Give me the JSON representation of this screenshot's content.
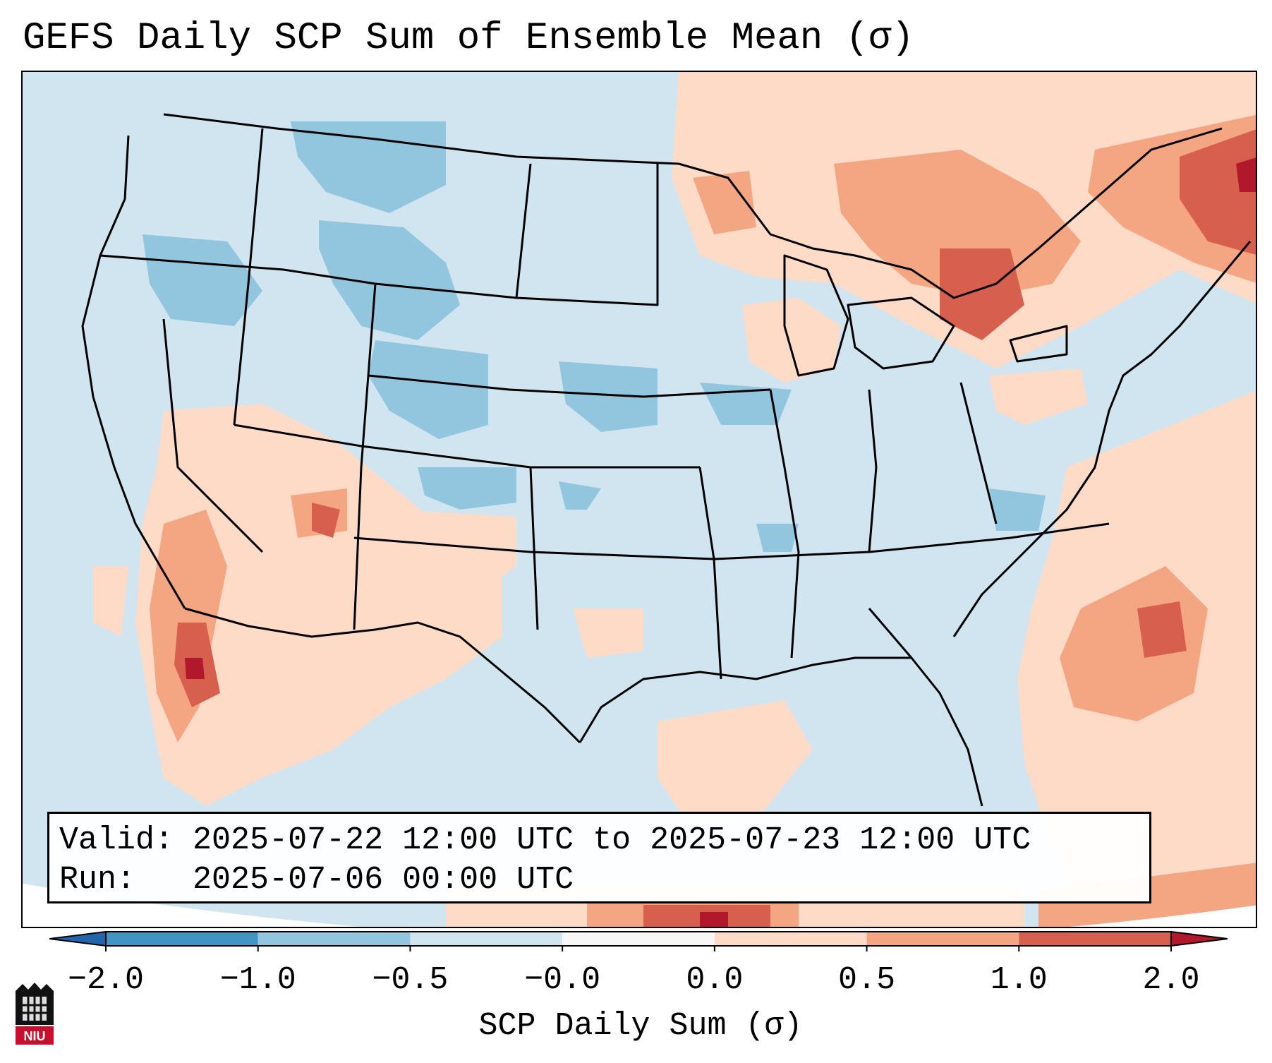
{
  "title": "GEFS Daily SCP Sum of Ensemble Mean (σ)",
  "info": {
    "valid_label": "Valid:",
    "valid_value": "2025-07-22 12:00 UTC to 2025-07-23 12:00 UTC",
    "run_label": "Run:",
    "run_value": "2025-07-06 00:00 UTC"
  },
  "colorbar": {
    "label": "SCP Daily Sum (σ)",
    "ticks": [
      "−2.0",
      "−1.0",
      "−0.5",
      "−0.0",
      "0.0",
      "0.5",
      "1.0",
      "2.0"
    ],
    "colors": [
      "#2166ac",
      "#4393c3",
      "#92c5de",
      "#d1e5f0",
      "#fddbc7",
      "#f4a582",
      "#d6604d",
      "#b2182b"
    ],
    "neutral_color": "#f7f7f7",
    "extend": "both"
  },
  "map": {
    "region": "CONUS",
    "ocean_color": "#d1e5f0",
    "border_color": "#000000"
  },
  "logo": {
    "text": "NIU"
  }
}
